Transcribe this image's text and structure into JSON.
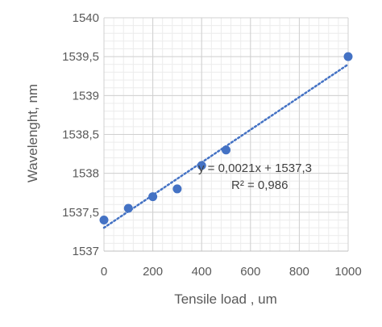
{
  "chart_data": {
    "type": "scatter",
    "title": "",
    "xlabel": "Tensile load , um",
    "ylabel": "Wavelenght, nm",
    "xlim": [
      0,
      1000
    ],
    "ylim": [
      1537,
      1540
    ],
    "x_ticks": [
      0,
      200,
      400,
      600,
      800,
      1000
    ],
    "y_ticks": [
      1537,
      1537.5,
      1538,
      1538.5,
      1539,
      1539.5,
      1540
    ],
    "x_tick_labels": [
      "0",
      "200",
      "400",
      "600",
      "800",
      "1000"
    ],
    "y_tick_labels": [
      "1537",
      "1537,5",
      "1538",
      "1538,5",
      "1539",
      "1539,5",
      "1540"
    ],
    "grid": true,
    "minor_grid": true,
    "series": [
      {
        "x": [
          0,
          100,
          200,
          300,
          400,
          500,
          1000
        ],
        "y": [
          1537.4,
          1537.55,
          1537.7,
          1537.8,
          1538.1,
          1538.3,
          1539.5
        ],
        "color": "#4472C4"
      }
    ],
    "trendline": {
      "type": "linear",
      "slope": 0.0021,
      "intercept": 1537.3,
      "style": "dotted",
      "color": "#4472C4",
      "x_range": [
        0,
        1000
      ]
    },
    "annotations": {
      "equation": "y = 0,0021x + 1537,3",
      "r_squared": "R² = 0,986"
    }
  }
}
